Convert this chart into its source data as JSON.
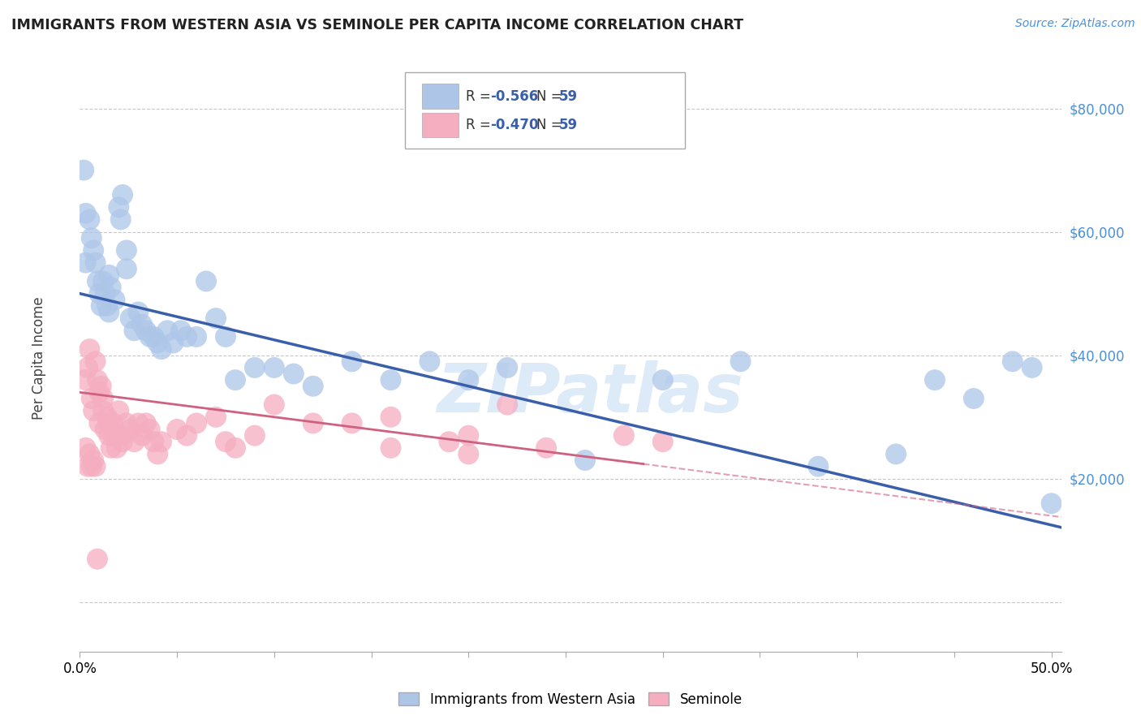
{
  "title": "IMMIGRANTS FROM WESTERN ASIA VS SEMINOLE PER CAPITA INCOME CORRELATION CHART",
  "source": "Source: ZipAtlas.com",
  "ylabel": "Per Capita Income",
  "watermark": "ZIPatlas",
  "blue_R": "-0.566",
  "blue_N": "59",
  "pink_R": "-0.470",
  "pink_N": "59",
  "blue_color": "#adc6e8",
  "pink_color": "#f5adc0",
  "blue_line_color": "#3a5faa",
  "pink_line_color": "#d06080",
  "right_axis_color": "#4a90d9",
  "grid_color": "#c8c8c8",
  "yticks": [
    0,
    20000,
    40000,
    60000,
    80000
  ],
  "xlim": [
    0.0,
    0.505
  ],
  "ylim": [
    -8000,
    87000
  ],
  "blue_intercept": 50000,
  "blue_slope": -75000,
  "pink_intercept": 34000,
  "pink_slope": -40000,
  "blue_scatter_x": [
    0.003,
    0.005,
    0.006,
    0.007,
    0.008,
    0.009,
    0.01,
    0.011,
    0.012,
    0.013,
    0.014,
    0.015,
    0.015,
    0.016,
    0.018,
    0.02,
    0.021,
    0.022,
    0.024,
    0.024,
    0.026,
    0.028,
    0.03,
    0.032,
    0.034,
    0.036,
    0.038,
    0.04,
    0.042,
    0.045,
    0.048,
    0.052,
    0.055,
    0.06,
    0.065,
    0.07,
    0.075,
    0.08,
    0.09,
    0.1,
    0.11,
    0.12,
    0.14,
    0.16,
    0.18,
    0.2,
    0.22,
    0.26,
    0.3,
    0.34,
    0.38,
    0.42,
    0.44,
    0.46,
    0.48,
    0.49,
    0.5,
    0.002,
    0.003
  ],
  "blue_scatter_y": [
    55000,
    62000,
    59000,
    57000,
    55000,
    52000,
    50000,
    48000,
    52000,
    50000,
    48000,
    47000,
    53000,
    51000,
    49000,
    64000,
    62000,
    66000,
    57000,
    54000,
    46000,
    44000,
    47000,
    45000,
    44000,
    43000,
    43000,
    42000,
    41000,
    44000,
    42000,
    44000,
    43000,
    43000,
    52000,
    46000,
    43000,
    36000,
    38000,
    38000,
    37000,
    35000,
    39000,
    36000,
    39000,
    36000,
    38000,
    23000,
    36000,
    39000,
    22000,
    24000,
    36000,
    33000,
    39000,
    38000,
    16000,
    70000,
    63000
  ],
  "pink_scatter_x": [
    0.003,
    0.004,
    0.005,
    0.006,
    0.007,
    0.008,
    0.009,
    0.01,
    0.01,
    0.011,
    0.012,
    0.012,
    0.013,
    0.014,
    0.015,
    0.015,
    0.016,
    0.017,
    0.018,
    0.019,
    0.02,
    0.021,
    0.022,
    0.024,
    0.026,
    0.028,
    0.03,
    0.032,
    0.034,
    0.036,
    0.038,
    0.04,
    0.042,
    0.05,
    0.055,
    0.06,
    0.07,
    0.075,
    0.08,
    0.09,
    0.1,
    0.12,
    0.14,
    0.16,
    0.22,
    0.24,
    0.28,
    0.3,
    0.16,
    0.2,
    0.003,
    0.004,
    0.005,
    0.006,
    0.007,
    0.008,
    0.009,
    0.19,
    0.2
  ],
  "pink_scatter_y": [
    36000,
    38000,
    41000,
    33000,
    31000,
    39000,
    36000,
    34000,
    29000,
    35000,
    33000,
    31000,
    28000,
    30000,
    27000,
    29000,
    25000,
    29000,
    27000,
    25000,
    31000,
    27000,
    26000,
    29000,
    28000,
    26000,
    29000,
    27000,
    29000,
    28000,
    26000,
    24000,
    26000,
    28000,
    27000,
    29000,
    30000,
    26000,
    25000,
    27000,
    32000,
    29000,
    29000,
    30000,
    32000,
    25000,
    27000,
    26000,
    25000,
    27000,
    25000,
    22000,
    24000,
    22000,
    23000,
    22000,
    7000,
    26000,
    24000
  ],
  "legend_series": [
    "Immigrants from Western Asia",
    "Seminole"
  ]
}
